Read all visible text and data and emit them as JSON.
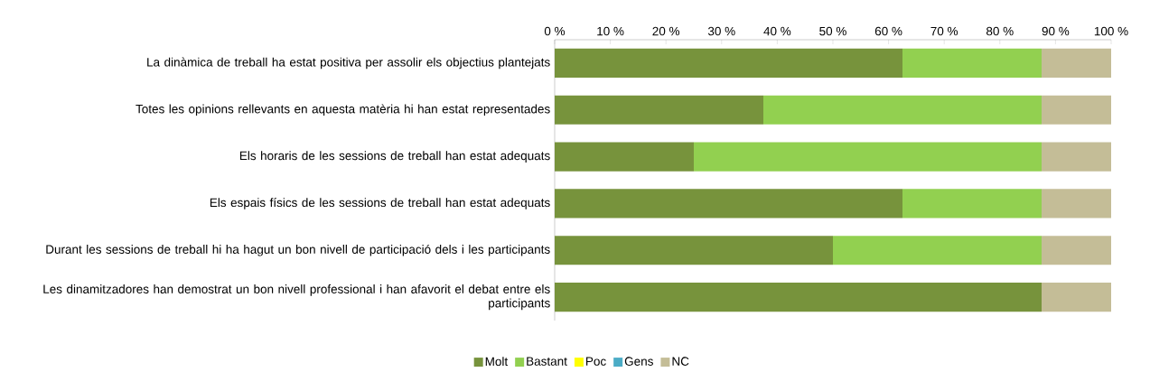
{
  "chart_data": {
    "type": "bar",
    "orientation": "horizontal",
    "stacked": true,
    "categories": [
      "La dinàmica de treball ha estat positiva per assolir els objectius plantejats",
      "Totes les opinions rellevants en aquesta matèria hi han estat representades",
      "Els horaris de les sessions de treball han estat adequats",
      "Els espais físics de les sessions de treball han estat adequats",
      "Durant les sessions de treball hi ha hagut un bon nivell de participació dels i les participants",
      "Les dinamitzadores han demostrat un bon nivell professional i han afavorit el debat entre els participants"
    ],
    "series": [
      {
        "name": "Molt",
        "color": "#77933c",
        "values": [
          62.5,
          37.5,
          25,
          62.5,
          50,
          87.5
        ]
      },
      {
        "name": "Bastant",
        "color": "#92d050",
        "values": [
          25,
          50,
          62.5,
          25,
          37.5,
          0
        ]
      },
      {
        "name": "Poc",
        "color": "#ffff00",
        "values": [
          0,
          0,
          0,
          0,
          0,
          0
        ]
      },
      {
        "name": "Gens",
        "color": "#4bacc6",
        "values": [
          0,
          0,
          0,
          0,
          0,
          0
        ]
      },
      {
        "name": "NC",
        "color": "#c4bd97",
        "values": [
          12.5,
          12.5,
          12.5,
          12.5,
          12.5,
          12.5
        ]
      }
    ],
    "xlim": [
      0,
      100
    ],
    "xticks": [
      {
        "value": 0,
        "label": "0 %"
      },
      {
        "value": 10,
        "label": "10 %"
      },
      {
        "value": 20,
        "label": "20 %"
      },
      {
        "value": 30,
        "label": "30 %"
      },
      {
        "value": 40,
        "label": "40 %"
      },
      {
        "value": 50,
        "label": "50 %"
      },
      {
        "value": 60,
        "label": "60 %"
      },
      {
        "value": 70,
        "label": "70 %"
      },
      {
        "value": 80,
        "label": "80 %"
      },
      {
        "value": 90,
        "label": "90 %"
      },
      {
        "value": 100,
        "label": "100 %"
      }
    ],
    "grid": false,
    "legend": "bottom"
  }
}
